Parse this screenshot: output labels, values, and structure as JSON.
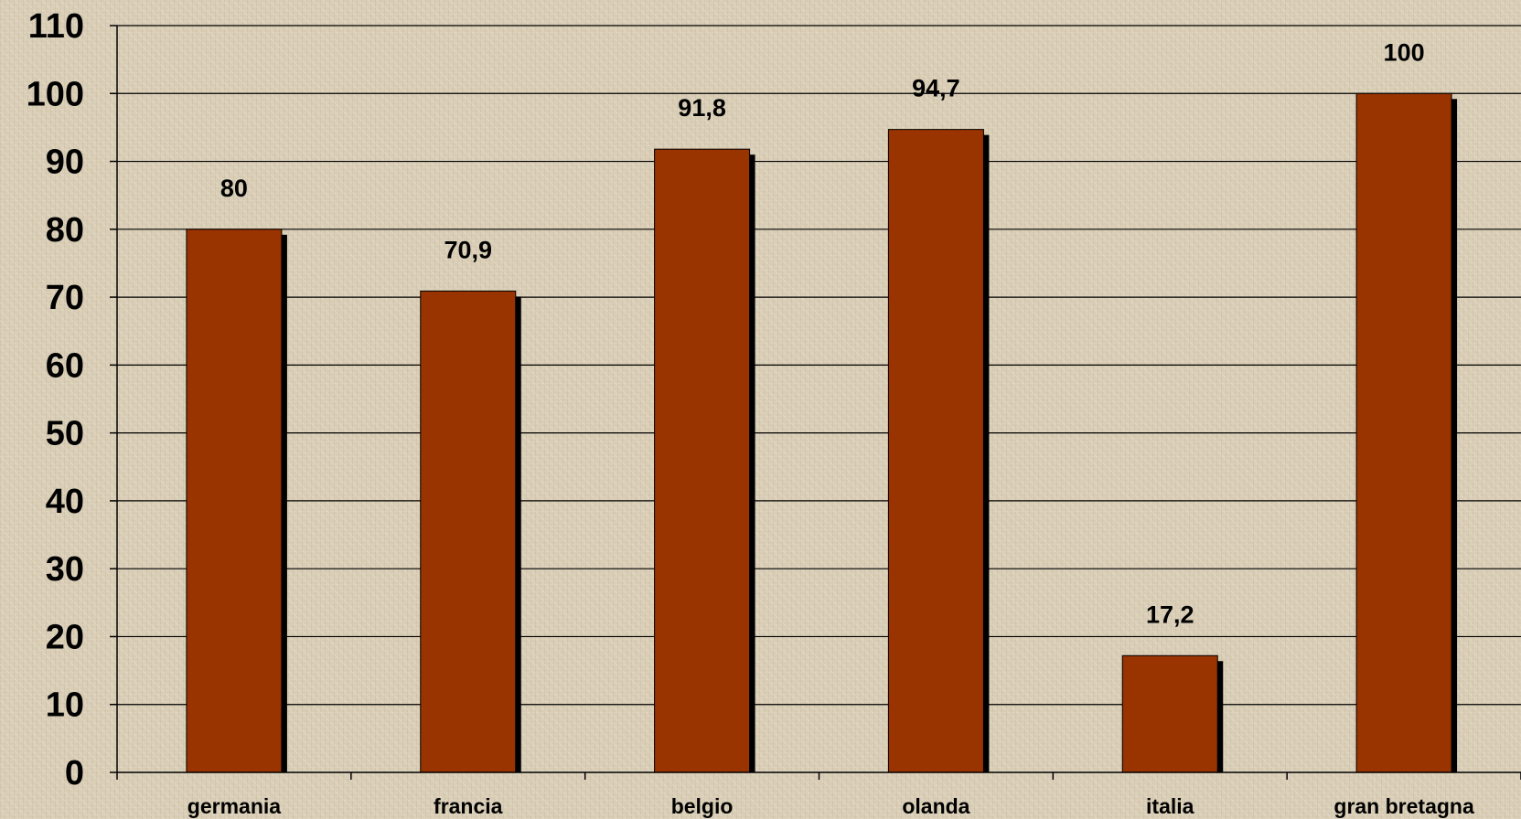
{
  "chart_data": {
    "type": "bar",
    "title": "",
    "xlabel": "",
    "ylabel": "",
    "categories": [
      "germania",
      "francia",
      "belgio",
      "olanda",
      "italia",
      "gran bretagna"
    ],
    "values": [
      80,
      70.9,
      91.8,
      94.7,
      17.2,
      100
    ],
    "value_labels": [
      "80",
      "70,9",
      "91,8",
      "94,7",
      "17,2",
      "100"
    ],
    "ylim": [
      0,
      110
    ],
    "yticks": [
      0,
      10,
      20,
      30,
      40,
      50,
      60,
      70,
      80,
      90,
      100,
      110
    ],
    "grid": true,
    "legend": "none",
    "colors": {
      "bar": "#993300",
      "bar_shadow": "#000000",
      "grid": "#000000",
      "background": "#d8ccb4"
    }
  }
}
